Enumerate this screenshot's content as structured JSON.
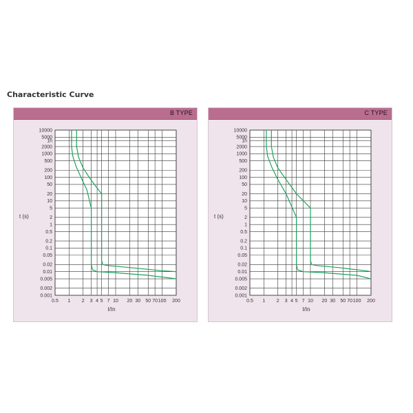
{
  "page": {
    "title": "Characteristic Curve"
  },
  "chart_data": [
    {
      "type": "line",
      "title": "B TYPE",
      "xlabel": "I/In",
      "ylabel": "t (s)",
      "x_scale": "log",
      "y_scale": "log",
      "xlim": [
        0.5,
        200
      ],
      "ylim": [
        0.001,
        10000
      ],
      "x_ticks": [
        "0.5",
        "1",
        "2",
        "3",
        "4",
        "5",
        "7",
        "10",
        "20",
        "30",
        "50",
        "70",
        "100",
        "200"
      ],
      "y_ticks": [
        "10000",
        "5000",
        "1h",
        "2000",
        "1000",
        "500",
        "200",
        "100",
        "50",
        "20",
        "10",
        "5",
        "2",
        "1",
        "0.5",
        "0.2",
        "0.1",
        "0.05",
        "0.02",
        "0.01",
        "0.005",
        "0.002",
        "0.001"
      ],
      "grid": true,
      "series": [
        {
          "x": [
            1.13,
            1.13,
            1.2,
            1.4,
            1.8,
            2.4,
            3.0,
            3.0,
            3.2,
            4,
            10,
            50,
            200
          ],
          "y": [
            10000,
            2000,
            800,
            300,
            100,
            30,
            5,
            0.02,
            0.012,
            0.01,
            0.009,
            0.007,
            0.005
          ]
        },
        {
          "x": [
            1.45,
            1.45,
            1.6,
            2.0,
            2.8,
            4.0,
            5.0,
            5.0,
            5.3,
            7,
            20,
            100,
            200
          ],
          "y": [
            10000,
            2000,
            700,
            250,
            90,
            35,
            20,
            0.03,
            0.02,
            0.018,
            0.015,
            0.011,
            0.01
          ]
        }
      ]
    },
    {
      "type": "line",
      "title": "C TYPE",
      "xlabel": "I/In",
      "ylabel": "t (s)",
      "x_scale": "log",
      "y_scale": "log",
      "xlim": [
        0.5,
        200
      ],
      "ylim": [
        0.001,
        10000
      ],
      "x_ticks": [
        "0.5",
        "1",
        "2",
        "3",
        "4",
        "5",
        "7",
        "10",
        "20",
        "30",
        "50",
        "70",
        "100",
        "200"
      ],
      "y_ticks": [
        "10000",
        "5000",
        "1h",
        "2000",
        "1000",
        "500",
        "200",
        "100",
        "50",
        "20",
        "10",
        "5",
        "2",
        "1",
        "0.5",
        "0.2",
        "0.1",
        "0.05",
        "0.02",
        "0.01",
        "0.005",
        "0.002",
        "0.001"
      ],
      "grid": true,
      "series": [
        {
          "x": [
            1.13,
            1.13,
            1.2,
            1.5,
            2.0,
            3.0,
            5.0,
            5.0,
            5.3,
            7,
            20,
            100,
            200
          ],
          "y": [
            10000,
            2000,
            800,
            250,
            80,
            20,
            2,
            0.02,
            0.012,
            0.01,
            0.009,
            0.007,
            0.005
          ]
        },
        {
          "x": [
            1.45,
            1.45,
            1.6,
            2.0,
            3.0,
            5.0,
            10,
            10,
            10.6,
            14,
            40,
            150,
            200
          ],
          "y": [
            10000,
            2000,
            700,
            250,
            80,
            20,
            5,
            0.03,
            0.02,
            0.018,
            0.015,
            0.011,
            0.01
          ]
        }
      ]
    }
  ]
}
